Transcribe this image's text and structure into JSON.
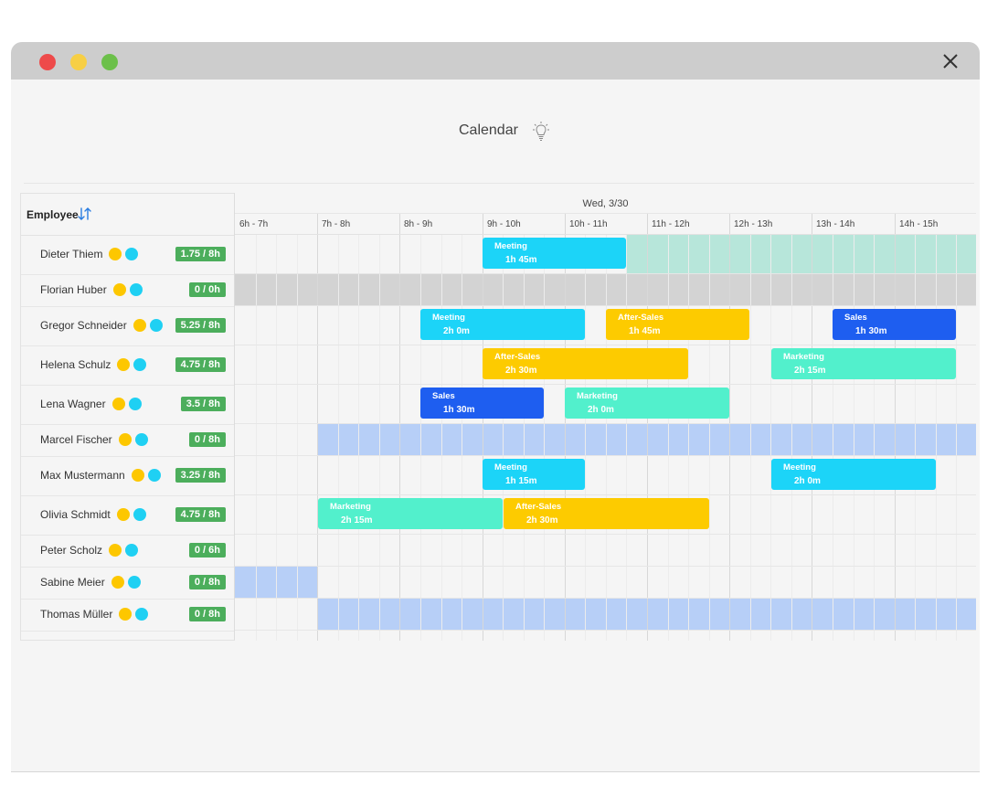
{
  "window": {
    "title": "Calendar",
    "close_icon": "close-icon",
    "lightbulb_icon": "lightbulb-icon"
  },
  "header": {
    "employee_label": "Employee",
    "sort_icon": "sort-arrows-icon",
    "day": "Wed, 3/30"
  },
  "hours": [
    "6h - 7h",
    "7h - 8h",
    "8h - 9h",
    "9h - 10h",
    "10h - 11h",
    "11h - 12h",
    "12h - 13h",
    "13h - 14h",
    "14h - 15h"
  ],
  "employees": [
    {
      "name": "Dieter Thiem",
      "hours": "1.75 / 8h"
    },
    {
      "name": "Florian Huber",
      "hours": "0 / 0h"
    },
    {
      "name": "Gregor Schneider",
      "hours": "5.25 / 8h"
    },
    {
      "name": "Helena Schulz",
      "hours": "4.75 / 8h"
    },
    {
      "name": "Lena Wagner",
      "hours": "3.5 / 8h"
    },
    {
      "name": "Marcel Fischer",
      "hours": "0 / 8h"
    },
    {
      "name": "Max Mustermann",
      "hours": "3.25 / 8h"
    },
    {
      "name": "Olivia Schmidt",
      "hours": "4.75 / 8h"
    },
    {
      "name": "Peter Scholz",
      "hours": "0 / 6h"
    },
    {
      "name": "Sabine Meier",
      "hours": "0 / 8h"
    },
    {
      "name": "Thomas Müller",
      "hours": "0 / 8h"
    }
  ],
  "events": [
    {
      "row": 0,
      "label": "Meeting",
      "duration": "1h 45m",
      "type": "meeting"
    },
    {
      "row": 2,
      "label": "Meeting",
      "duration": "2h 0m",
      "type": "meeting"
    },
    {
      "row": 2,
      "label": "After-Sales",
      "duration": "1h 45m",
      "type": "after"
    },
    {
      "row": 2,
      "label": "Sales",
      "duration": "1h 30m",
      "type": "sales"
    },
    {
      "row": 3,
      "label": "After-Sales",
      "duration": "2h 30m",
      "type": "after"
    },
    {
      "row": 3,
      "label": "Marketing",
      "duration": "2h 15m",
      "type": "marketing"
    },
    {
      "row": 4,
      "label": "Sales",
      "duration": "1h 30m",
      "type": "sales"
    },
    {
      "row": 4,
      "label": "Marketing",
      "duration": "2h 0m",
      "type": "marketing"
    },
    {
      "row": 6,
      "label": "Meeting",
      "duration": "1h 15m",
      "type": "meeting"
    },
    {
      "row": 6,
      "label": "Meeting",
      "duration": "2h 0m",
      "type": "meeting"
    },
    {
      "row": 7,
      "label": "Marketing",
      "duration": "2h 15m",
      "type": "marketing"
    },
    {
      "row": 7,
      "label": "After-Sales",
      "duration": "2h 30m",
      "type": "after"
    }
  ],
  "colors": {
    "meeting": "#1cd4f8",
    "after_sales": "#fdcb00",
    "sales": "#1e5ef0",
    "marketing": "#52f0cc",
    "hours_badge": "#4cae5c",
    "dot_yellow": "#fdc700",
    "dot_cyan": "#1fd0f3",
    "band_teal": "#b7e6da",
    "band_gray": "#d3d3d3",
    "band_blue": "#b7cff7"
  }
}
